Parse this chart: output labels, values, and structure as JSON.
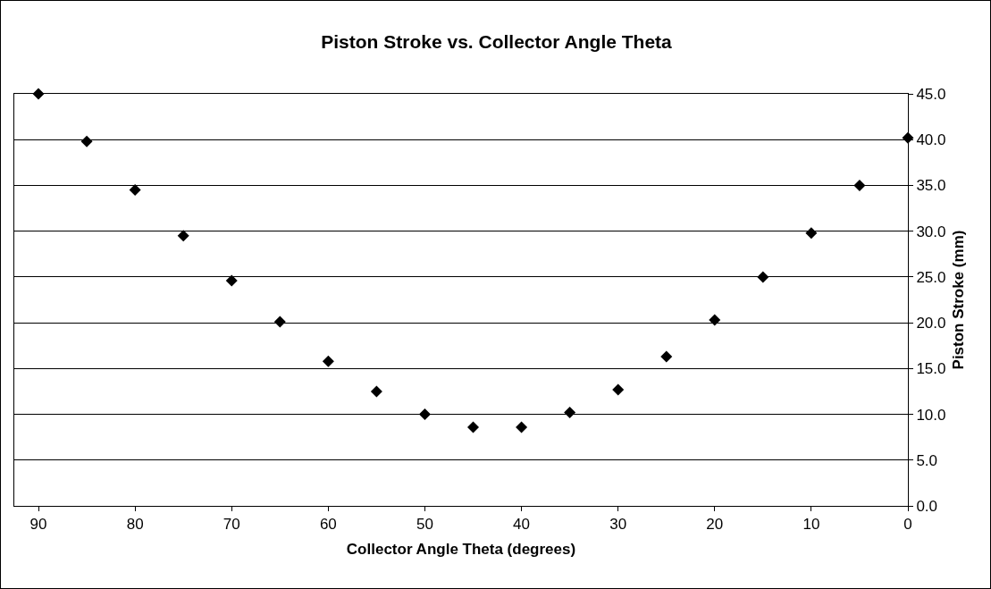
{
  "chart_data": {
    "type": "scatter",
    "title": "Piston Stroke vs. Collector Angle Theta",
    "xlabel": "Collector Angle Theta (degrees)",
    "ylabel": "Piston Stroke (mm)",
    "x": [
      90,
      85,
      80,
      75,
      70,
      65,
      60,
      55,
      50,
      45,
      40,
      35,
      30,
      25,
      20,
      15,
      10,
      5,
      0
    ],
    "series": [
      {
        "color": "#000000",
        "values": [
          45.0,
          39.8,
          34.5,
          29.5,
          24.6,
          20.1,
          15.8,
          12.5,
          10.0,
          8.6,
          8.6,
          10.2,
          12.7,
          16.3,
          20.3,
          25.0,
          29.8,
          35.0,
          40.2
        ]
      }
    ],
    "xlim": [
      92.5,
      0
    ],
    "xticks": [
      90,
      80,
      70,
      60,
      50,
      40,
      30,
      20,
      10,
      0
    ],
    "ylim": [
      0,
      45
    ],
    "yticks": [
      {
        "value": 0,
        "label": "0.0"
      },
      {
        "value": 5,
        "label": "5.0"
      },
      {
        "value": 10,
        "label": "10.0"
      },
      {
        "value": 15,
        "label": "15.0"
      },
      {
        "value": 20,
        "label": "20.0"
      },
      {
        "value": 25,
        "label": "25.0"
      },
      {
        "value": 30,
        "label": "30.0"
      },
      {
        "value": 35,
        "label": "35.0"
      },
      {
        "value": 40,
        "label": "40.0"
      },
      {
        "value": 45,
        "label": "45.0"
      }
    ],
    "grid": "y",
    "marker": "diamond",
    "legend": false
  }
}
